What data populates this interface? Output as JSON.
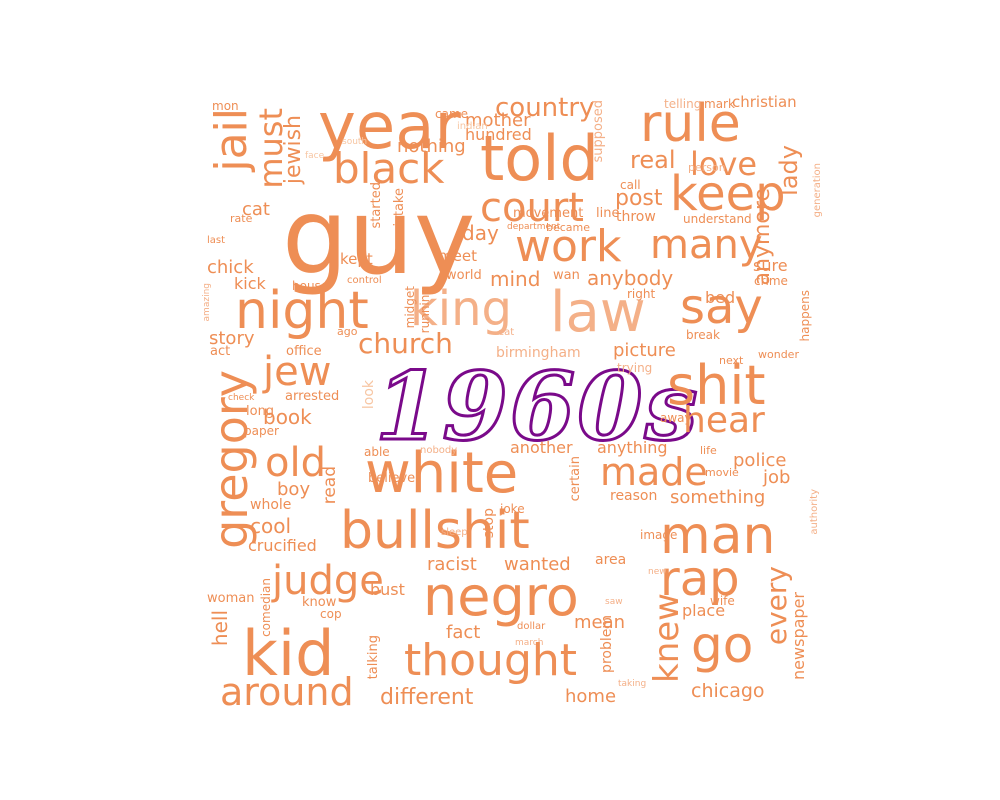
{
  "cloud": {
    "hero": {
      "text": "1960s",
      "color": "#7a0a8a"
    },
    "palette": {
      "main": "#ee8e55",
      "light": "#f4b088",
      "pale": "#f7c6a3"
    },
    "words": [
      {
        "t": "guy"
      },
      {
        "t": "year"
      },
      {
        "t": "told"
      },
      {
        "t": "rule"
      },
      {
        "t": "keep"
      },
      {
        "t": "country"
      },
      {
        "t": "black"
      },
      {
        "t": "court"
      },
      {
        "t": "work"
      },
      {
        "t": "many"
      },
      {
        "t": "love"
      },
      {
        "t": "real"
      },
      {
        "t": "post"
      },
      {
        "t": "jail"
      },
      {
        "t": "must"
      },
      {
        "t": "jewish"
      },
      {
        "t": "lady"
      },
      {
        "t": "anymore"
      },
      {
        "t": "mother"
      },
      {
        "t": "hundred"
      },
      {
        "t": "nothing"
      },
      {
        "t": "telling"
      },
      {
        "t": "mark"
      },
      {
        "t": "christian"
      },
      {
        "t": "came"
      },
      {
        "t": "indian"
      },
      {
        "t": "supposed"
      },
      {
        "t": "mon"
      },
      {
        "t": "south"
      },
      {
        "t": "face"
      },
      {
        "t": "person"
      },
      {
        "t": "call"
      },
      {
        "t": "throw"
      },
      {
        "t": "understand"
      },
      {
        "t": "generation"
      },
      {
        "t": "movement"
      },
      {
        "t": "line"
      },
      {
        "t": "department"
      },
      {
        "t": "became"
      },
      {
        "t": "started"
      },
      {
        "t": "mistake"
      },
      {
        "t": "day"
      },
      {
        "t": "rate"
      },
      {
        "t": "last"
      },
      {
        "t": "cat"
      },
      {
        "t": "chick"
      },
      {
        "t": "kept"
      },
      {
        "t": "meet"
      },
      {
        "t": "bed"
      },
      {
        "t": "sure"
      },
      {
        "t": "night"
      },
      {
        "t": "king"
      },
      {
        "t": "law"
      },
      {
        "t": "say"
      },
      {
        "t": "mind"
      },
      {
        "t": "anybody"
      },
      {
        "t": "world"
      },
      {
        "t": "wan"
      },
      {
        "t": "right"
      },
      {
        "t": "crime"
      },
      {
        "t": "kick"
      },
      {
        "t": "house"
      },
      {
        "t": "control"
      },
      {
        "t": "amazing"
      },
      {
        "t": "midget"
      },
      {
        "t": "running"
      },
      {
        "t": "story"
      },
      {
        "t": "act"
      },
      {
        "t": "office"
      },
      {
        "t": "ago"
      },
      {
        "t": "eat"
      },
      {
        "t": "church"
      },
      {
        "t": "birmingham"
      },
      {
        "t": "picture"
      },
      {
        "t": "break"
      },
      {
        "t": "wonder"
      },
      {
        "t": "next"
      },
      {
        "t": "happens"
      },
      {
        "t": "jew"
      },
      {
        "t": "shit"
      },
      {
        "t": "trying"
      },
      {
        "t": "check"
      },
      {
        "t": "arrested"
      },
      {
        "t": "long"
      },
      {
        "t": "book"
      },
      {
        "t": "look"
      },
      {
        "t": "paper"
      },
      {
        "t": "hear"
      },
      {
        "t": "away"
      },
      {
        "t": "gregory"
      },
      {
        "t": "old"
      },
      {
        "t": "white"
      },
      {
        "t": "made"
      },
      {
        "t": "nobody"
      },
      {
        "t": "another"
      },
      {
        "t": "anything"
      },
      {
        "t": "able"
      },
      {
        "t": "life"
      },
      {
        "t": "police"
      },
      {
        "t": "job"
      },
      {
        "t": "boy"
      },
      {
        "t": "read"
      },
      {
        "t": "believe"
      },
      {
        "t": "certain"
      },
      {
        "t": "reason"
      },
      {
        "t": "movie"
      },
      {
        "t": "something"
      },
      {
        "t": "authority"
      },
      {
        "t": "whole"
      },
      {
        "t": "joke"
      },
      {
        "t": "bullshit"
      },
      {
        "t": "man"
      },
      {
        "t": "cool"
      },
      {
        "t": "crucified"
      },
      {
        "t": "sleep"
      },
      {
        "t": "stop"
      },
      {
        "t": "image"
      },
      {
        "t": "judge"
      },
      {
        "t": "rap"
      },
      {
        "t": "racist"
      },
      {
        "t": "wanted"
      },
      {
        "t": "area"
      },
      {
        "t": "new"
      },
      {
        "t": "negro"
      },
      {
        "t": "every"
      },
      {
        "t": "woman"
      },
      {
        "t": "comedian"
      },
      {
        "t": "know"
      },
      {
        "t": "bust"
      },
      {
        "t": "saw"
      },
      {
        "t": "wife"
      },
      {
        "t": "place"
      },
      {
        "t": "cop"
      },
      {
        "t": "dollar"
      },
      {
        "t": "fact"
      },
      {
        "t": "mean"
      },
      {
        "t": "knew"
      },
      {
        "t": "hell"
      },
      {
        "t": "kid"
      },
      {
        "t": "talking"
      },
      {
        "t": "march"
      },
      {
        "t": "thought"
      },
      {
        "t": "problem"
      },
      {
        "t": "go"
      },
      {
        "t": "newspaper"
      },
      {
        "t": "taking"
      },
      {
        "t": "around"
      },
      {
        "t": "different"
      },
      {
        "t": "home"
      },
      {
        "t": "chicago"
      }
    ]
  }
}
